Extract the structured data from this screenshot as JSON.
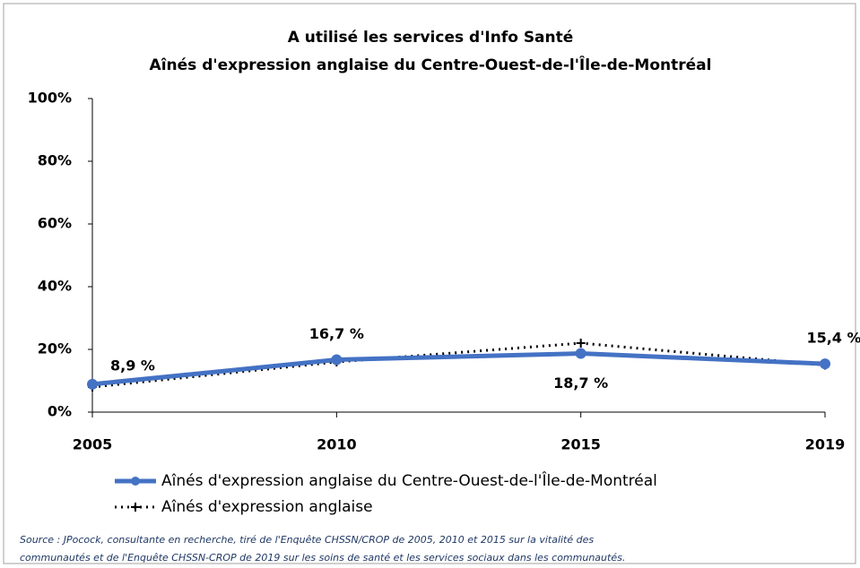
{
  "chart_data": {
    "type": "line",
    "title": [
      "A utilisé les services d'Info Santé",
      "Aînés d'expression anglaise du Centre-Ouest-de-l'Île-de-Montréal"
    ],
    "categories": [
      "2005",
      "2010",
      "2015",
      "2019"
    ],
    "series": [
      {
        "name": "Aînés d'expression anglaise du Centre-Ouest-de-l'Île-de-Montréal",
        "color": "#4472c4",
        "values": [
          8.9,
          16.7,
          18.7,
          15.4
        ],
        "value_labels": [
          "8,9 %",
          "16,7 %",
          "18,7 %",
          "15,4 %"
        ]
      },
      {
        "name": "Aînés d'expression anglaise",
        "color": "#000000",
        "dashed": true,
        "values": [
          8,
          16,
          22,
          15
        ]
      }
    ],
    "ylim": [
      0,
      100
    ],
    "yticks": [
      {
        "value": 0,
        "label": "0%"
      },
      {
        "value": 20,
        "label": "20%"
      },
      {
        "value": 40,
        "label": "40%"
      },
      {
        "value": 60,
        "label": "60%"
      },
      {
        "value": 80,
        "label": "80%"
      },
      {
        "value": 100,
        "label": "100%"
      }
    ],
    "grid": false,
    "source": [
      "Source : JPocock, consultante en recherche, tiré de l'Enquête CHSSN/CROP de 2005, 2010 et 2015 sur la vitalité des",
      "communautés et de l'Enquête CHSSN-CROP de 2019 sur les soins de santé et les services sociaux dans les communautés."
    ]
  }
}
